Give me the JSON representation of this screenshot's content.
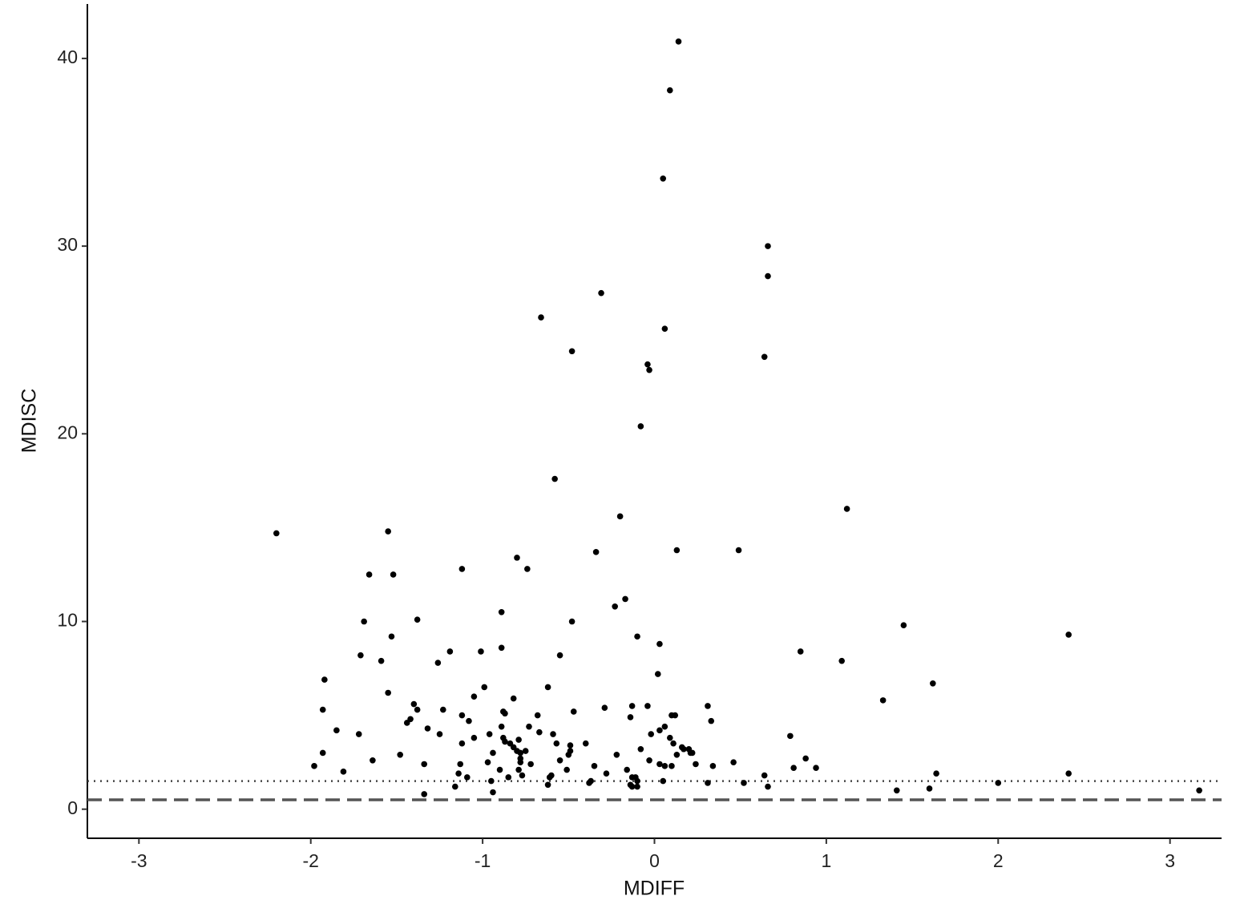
{
  "chart_data": {
    "type": "scatter",
    "x_label": "MDIFF",
    "y_label": "MDISC",
    "xlim": [
      -3.3,
      3.3
    ],
    "ylim": [
      -1.55,
      42.9
    ],
    "xticks": [
      -3,
      -2,
      -1,
      0,
      1,
      2,
      3
    ],
    "yticks": [
      0,
      10,
      20,
      30,
      40
    ],
    "grid": false,
    "color": "#000000",
    "hlines": [
      {
        "y": 1.5,
        "style": "dotted",
        "color": "#444444"
      },
      {
        "y": 0.5,
        "style": "dashed",
        "color": "#555555"
      }
    ],
    "x": [
      0.14,
      0.09,
      0.05,
      0.66,
      0.66,
      -0.31,
      -0.66,
      0.06,
      -0.48,
      0.64,
      -0.04,
      -0.03,
      -0.08,
      -0.58,
      1.12,
      -0.2,
      -2.2,
      -1.55,
      0.13,
      0.49,
      -0.34,
      -0.8,
      -1.12,
      -0.74,
      -1.66,
      -1.52,
      -0.17,
      -0.23,
      -0.89,
      -1.69,
      -1.38,
      -0.48,
      1.45,
      2.41,
      -1.53,
      -0.1,
      0.03,
      -0.89,
      -1.01,
      -1.19,
      0.85,
      -0.55,
      -1.71,
      -1.59,
      1.09,
      -1.26,
      0.02,
      -1.92,
      1.62,
      -0.99,
      -0.62,
      -1.55,
      -1.05,
      -0.82,
      1.33,
      -1.4,
      0.31,
      -0.13,
      -0.04,
      -0.29,
      -1.93,
      -1.23,
      -1.38,
      -0.47,
      -0.88,
      -0.87,
      -1.12,
      -0.68,
      0.1,
      0.12,
      -0.14,
      -1.42,
      -1.08,
      0.33,
      -1.44,
      -0.89,
      -0.73,
      0.06,
      -1.32,
      0.03,
      -1.85,
      -0.67,
      -0.02,
      -1.72,
      -1.25,
      -0.96,
      -0.59,
      0.79,
      -0.88,
      -1.05,
      0.09,
      -0.87,
      -0.79,
      -0.57,
      0.11,
      -0.84,
      -0.4,
      -0.49,
      -1.12,
      -0.82,
      0.16,
      -0.08,
      0.17,
      -0.8,
      -0.75,
      -0.49,
      0.2,
      0.21,
      0.22,
      -1.93,
      -0.78,
      -0.94,
      -0.5,
      -1.48,
      -0.22,
      0.13,
      -0.78,
      0.88,
      -1.64,
      -0.55,
      -0.03,
      0.46,
      -0.97,
      -0.78,
      -1.34,
      -0.72,
      0.03,
      -1.98,
      -1.13,
      -0.35,
      0.06,
      0.1,
      0.34,
      0.24,
      0.81,
      0.94,
      -0.9,
      -0.51,
      -0.16,
      -0.79,
      -1.81,
      -1.14,
      -0.77,
      -0.6,
      -0.28,
      1.64,
      2.41,
      0.64,
      -0.85,
      -0.61,
      -1.09,
      -0.13,
      -0.11,
      0.05,
      -0.95,
      -0.37,
      -0.1,
      2.0,
      0.31,
      0.52,
      -0.62,
      -0.38,
      -0.14,
      0.66,
      -0.1,
      -1.16,
      -0.13,
      1.6,
      1.41,
      3.17,
      -0.94,
      -1.34
    ],
    "values": [
      40.9,
      38.3,
      33.6,
      30.0,
      28.4,
      27.5,
      26.2,
      25.6,
      24.4,
      24.1,
      23.7,
      23.4,
      20.4,
      17.6,
      16.0,
      15.6,
      14.7,
      14.8,
      13.8,
      13.8,
      13.7,
      13.4,
      12.8,
      12.8,
      12.5,
      12.5,
      11.2,
      10.8,
      10.5,
      10.0,
      10.1,
      10.0,
      9.8,
      9.3,
      9.2,
      9.2,
      8.8,
      8.6,
      8.4,
      8.4,
      8.4,
      8.2,
      8.2,
      7.9,
      7.9,
      7.8,
      7.2,
      6.9,
      6.7,
      6.5,
      6.5,
      6.2,
      6.0,
      5.9,
      5.8,
      5.6,
      5.5,
      5.5,
      5.5,
      5.4,
      5.3,
      5.3,
      5.3,
      5.2,
      5.2,
      5.1,
      5.0,
      5.0,
      5.0,
      5.0,
      4.9,
      4.8,
      4.7,
      4.7,
      4.6,
      4.4,
      4.4,
      4.4,
      4.3,
      4.2,
      4.2,
      4.1,
      4.0,
      4.0,
      4.0,
      4.0,
      4.0,
      3.9,
      3.8,
      3.8,
      3.8,
      3.6,
      3.7,
      3.5,
      3.5,
      3.5,
      3.5,
      3.4,
      3.5,
      3.3,
      3.3,
      3.2,
      3.2,
      3.1,
      3.1,
      3.1,
      3.2,
      3.0,
      3.0,
      3.0,
      3.0,
      3.0,
      2.9,
      2.9,
      2.9,
      2.9,
      2.7,
      2.7,
      2.6,
      2.6,
      2.6,
      2.5,
      2.5,
      2.5,
      2.4,
      2.4,
      2.4,
      2.3,
      2.4,
      2.3,
      2.3,
      2.3,
      2.3,
      2.4,
      2.2,
      2.2,
      2.1,
      2.1,
      2.1,
      2.1,
      2.0,
      1.9,
      1.8,
      1.8,
      1.9,
      1.9,
      1.9,
      1.8,
      1.7,
      1.7,
      1.7,
      1.7,
      1.7,
      1.5,
      1.5,
      1.5,
      1.5,
      1.4,
      1.4,
      1.4,
      1.3,
      1.4,
      1.3,
      1.2,
      1.2,
      1.2,
      1.2,
      1.1,
      1.0,
      1.0,
      0.9,
      0.8
    ]
  }
}
